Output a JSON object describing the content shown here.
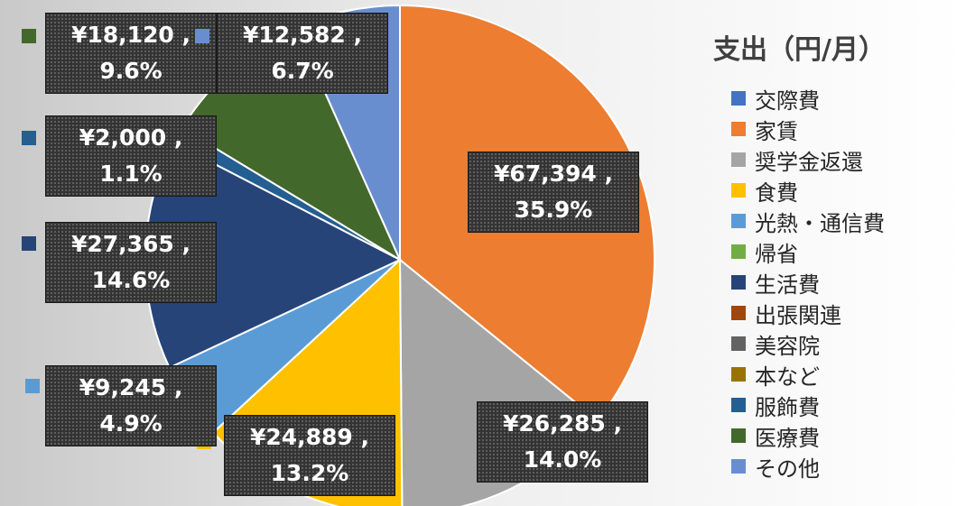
{
  "chart_data": {
    "type": "pie",
    "title": "支出（円/月）",
    "legend_position": "right",
    "slices": [
      {
        "label": "交際費",
        "value": 0,
        "display_value": "",
        "percent": "",
        "color": "#4472c4"
      },
      {
        "label": "家賃",
        "value": 67394,
        "display_value": "¥67,394 ,",
        "percent": "35.9%",
        "color": "#ed7d31"
      },
      {
        "label": "奨学金返還",
        "value": 26285,
        "display_value": "¥26,285 ,",
        "percent": "14.0%",
        "color": "#a5a5a5"
      },
      {
        "label": "食費",
        "value": 24889,
        "display_value": "¥24,889 ,",
        "percent": "13.2%",
        "color": "#ffc000"
      },
      {
        "label": "光熱・通信費",
        "value": 9245,
        "display_value": "¥9,245 ,",
        "percent": "4.9%",
        "color": "#5b9bd5"
      },
      {
        "label": "帰省",
        "value": 0,
        "display_value": "",
        "percent": "",
        "color": "#70ad47"
      },
      {
        "label": "生活費",
        "value": 27365,
        "display_value": "¥27,365 ,",
        "percent": "14.6%",
        "color": "#264478"
      },
      {
        "label": "出張関連",
        "value": 0,
        "display_value": "",
        "percent": "",
        "color": "#9e480e"
      },
      {
        "label": "美容院",
        "value": 0,
        "display_value": "",
        "percent": "",
        "color": "#636363"
      },
      {
        "label": "本など",
        "value": 0,
        "display_value": "",
        "percent": "",
        "color": "#997300"
      },
      {
        "label": "服飾費",
        "value": 2000,
        "display_value": "¥2,000 ,",
        "percent": "1.1%",
        "color": "#255e91"
      },
      {
        "label": "医療費",
        "value": 18120,
        "display_value": "¥18,120 ,",
        "percent": "9.6%",
        "color": "#43682b"
      },
      {
        "label": "その他",
        "value": 12582,
        "display_value": "¥12,582 ,",
        "percent": "6.7%",
        "color": "#698ed0"
      }
    ]
  }
}
